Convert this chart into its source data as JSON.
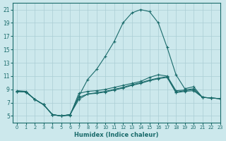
{
  "xlabel": "Humidex (Indice chaleur)",
  "bg_color": "#cce8ec",
  "grid_color": "#aacdd4",
  "line_color": "#1a6b6b",
  "xlim": [
    -0.5,
    23
  ],
  "ylim": [
    4,
    22
  ],
  "xticks": [
    0,
    1,
    2,
    3,
    4,
    5,
    6,
    7,
    8,
    9,
    10,
    11,
    12,
    13,
    14,
    15,
    16,
    17,
    18,
    19,
    20,
    21,
    22,
    23
  ],
  "yticks": [
    5,
    7,
    9,
    11,
    13,
    15,
    17,
    19,
    21
  ],
  "series": [
    [
      8.7,
      8.6,
      7.5,
      6.7,
      5.2,
      5.0,
      5.1,
      8.4,
      8.7,
      8.8,
      9.0,
      9.3,
      9.6,
      9.9,
      10.2,
      10.8,
      11.2,
      11.0,
      8.8,
      8.9,
      9.1,
      7.8,
      7.7,
      7.6
    ],
    [
      8.7,
      8.6,
      7.5,
      6.7,
      5.2,
      5.0,
      5.2,
      7.5,
      8.3,
      8.5,
      8.7,
      9.0,
      9.3,
      9.7,
      10.0,
      10.4,
      10.7,
      10.9,
      8.6,
      8.8,
      9.0,
      7.8,
      7.7,
      7.6
    ],
    [
      8.7,
      8.6,
      7.5,
      6.7,
      5.2,
      5.0,
      5.2,
      7.8,
      8.3,
      8.4,
      8.6,
      8.9,
      9.2,
      9.6,
      9.9,
      10.3,
      10.6,
      10.8,
      8.5,
      8.7,
      8.8,
      7.8,
      7.7,
      7.6
    ],
    [
      8.8,
      8.7,
      7.5,
      6.7,
      5.2,
      5.0,
      5.2,
      8.0,
      10.5,
      12.0,
      14.0,
      16.2,
      19.0,
      20.5,
      21.0,
      20.7,
      19.0,
      15.3,
      11.2,
      9.1,
      9.4,
      7.8,
      7.7,
      7.6
    ]
  ]
}
